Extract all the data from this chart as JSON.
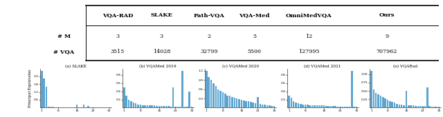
{
  "table_headers": [
    "",
    "VQA-RAD",
    "SLAKE",
    "Path-VQA",
    "VQA-Med",
    "OmniMedVQA",
    "Ours"
  ],
  "table_row1_label": "# M",
  "table_row1_vals": [
    "3",
    "3",
    "2",
    "5",
    "12",
    "9"
  ],
  "table_row2_label": "# VQA",
  "table_row2_vals": [
    "3515",
    "14028",
    "32799",
    "5500",
    "127995",
    "707962"
  ],
  "bar_color": "#5BA4CF",
  "subplot_titles": [
    "(a) SLAKE",
    "(b) VQAMed 2019",
    "(c) VQAMed 2020",
    "(d) VQAMed 2021",
    "(e) VQARad"
  ],
  "ylabel": "Principal Eigenvalue",
  "slake_data": [
    2.8,
    2.2,
    1.6,
    0.08,
    0.06,
    0.05,
    0.04,
    0.03,
    0.03,
    0.04,
    0.03,
    0.04,
    0.03,
    0.02,
    0.03,
    0.25,
    0.04,
    0.03,
    0.22,
    0.04,
    0.12,
    0.03,
    0.02,
    0.03,
    0.02,
    0.02,
    0.02,
    0.02,
    0.02,
    0.02
  ],
  "vqamed2019_data": [
    0.5,
    0.3,
    0.2,
    0.15,
    0.12,
    0.1,
    0.08,
    0.07,
    0.06,
    0.06,
    0.05,
    0.05,
    0.05,
    0.05,
    0.04,
    0.04,
    0.04,
    0.04,
    0.04,
    0.04,
    0.03,
    0.5,
    0.03,
    0.03,
    0.03,
    0.9,
    0.03,
    0.03,
    0.4,
    0.03
  ],
  "vqamed2020_data": [
    1.2,
    1.0,
    0.9,
    0.8,
    0.7,
    0.6,
    0.55,
    0.5,
    0.45,
    0.4,
    0.38,
    0.35,
    0.32,
    0.3,
    0.28,
    0.26,
    0.24,
    0.22,
    0.2,
    0.18,
    0.16,
    0.14,
    0.35,
    0.12,
    0.1,
    0.09,
    0.08,
    0.07,
    0.06,
    0.05
  ],
  "vqamed2021_data": [
    0.3,
    0.25,
    0.15,
    0.12,
    0.1,
    0.09,
    0.08,
    0.07,
    0.07,
    0.06,
    0.06,
    0.06,
    0.05,
    0.05,
    0.05,
    0.05,
    0.04,
    0.04,
    0.04,
    0.04,
    0.04,
    0.03,
    0.03,
    0.03,
    0.03,
    0.03,
    0.03,
    0.9,
    0.03,
    0.03
  ],
  "vqarad_data": [
    1.1,
    0.55,
    0.45,
    0.4,
    0.35,
    0.32,
    0.28,
    0.24,
    0.2,
    0.18,
    0.15,
    0.12,
    0.1,
    0.09,
    0.08,
    0.5,
    0.07,
    0.06,
    0.06,
    0.05,
    0.05,
    0.04,
    0.04,
    0.04,
    0.6,
    0.04,
    0.03,
    0.03,
    0.03,
    0.03
  ]
}
